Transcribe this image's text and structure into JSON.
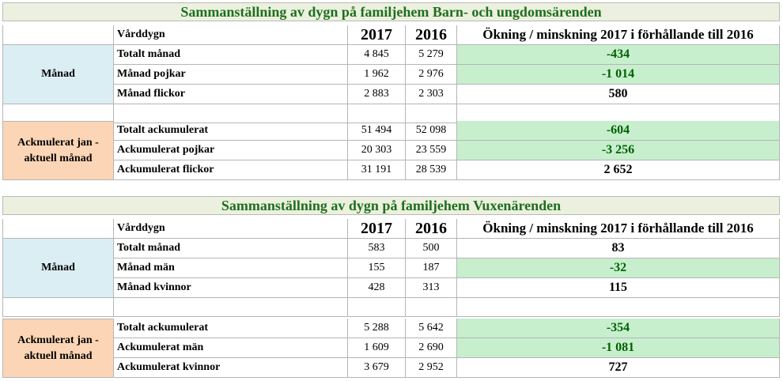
{
  "tables": [
    {
      "title": "Sammanställning av dygn på familjehem Barn- och ungdomsärenden",
      "header": {
        "label": "Vårddygn",
        "year1": "2017",
        "year2": "2016",
        "change": "Ökning / minskning 2017 i förhållande till 2016"
      },
      "group1": {
        "label": "Månad",
        "rows": [
          {
            "label": "Totalt månad",
            "v2017": "4 845",
            "v2016": "5 279",
            "change": "-434",
            "highlight": true
          },
          {
            "label": "Månad pojkar",
            "v2017": "1 962",
            "v2016": "2 976",
            "change": "-1 014",
            "highlight": true
          },
          {
            "label": "Månad flickor",
            "v2017": "2 883",
            "v2016": "2 303",
            "change": "580",
            "highlight": false
          }
        ]
      },
      "group2": {
        "label": "Ackmulerat jan - aktuell månad",
        "rows": [
          {
            "label": "Totalt ackumulerat",
            "v2017": "51 494",
            "v2016": "52 098",
            "change": "-604",
            "highlight": true
          },
          {
            "label": "Ackumulerat pojkar",
            "v2017": "20 303",
            "v2016": "23 559",
            "change": "-3 256",
            "highlight": true
          },
          {
            "label": "Ackumulerat flickor",
            "v2017": "31 191",
            "v2016": "28 539",
            "change": "2 652",
            "highlight": false
          }
        ]
      }
    },
    {
      "title": "Sammanställning av dygn på familjehem Vuxenärenden",
      "header": {
        "label": "Vårddygn",
        "year1": "2017",
        "year2": "2016",
        "change": "Ökning / minskning 2017 i förhållande till 2016"
      },
      "group1": {
        "label": "Månad",
        "rows": [
          {
            "label": "Totalt månad",
            "v2017": "583",
            "v2016": "500",
            "change": "83",
            "highlight": false
          },
          {
            "label": "Månad män",
            "v2017": "155",
            "v2016": "187",
            "change": "-32",
            "highlight": true
          },
          {
            "label": "Månad kvinnor",
            "v2017": "428",
            "v2016": "313",
            "change": "115",
            "highlight": false
          }
        ]
      },
      "group2": {
        "label": "Ackmulerat jan - aktuell månad",
        "rows": [
          {
            "label": "Totalt ackumulerat",
            "v2017": "5 288",
            "v2016": "5 642",
            "change": "-354",
            "highlight": true
          },
          {
            "label": "Ackumulerat män",
            "v2017": "1 609",
            "v2016": "2 690",
            "change": "-1 081",
            "highlight": true
          },
          {
            "label": "Ackumulerat kvinnor",
            "v2017": "3 679",
            "v2016": "2 952",
            "change": "727",
            "highlight": false
          }
        ]
      }
    }
  ]
}
